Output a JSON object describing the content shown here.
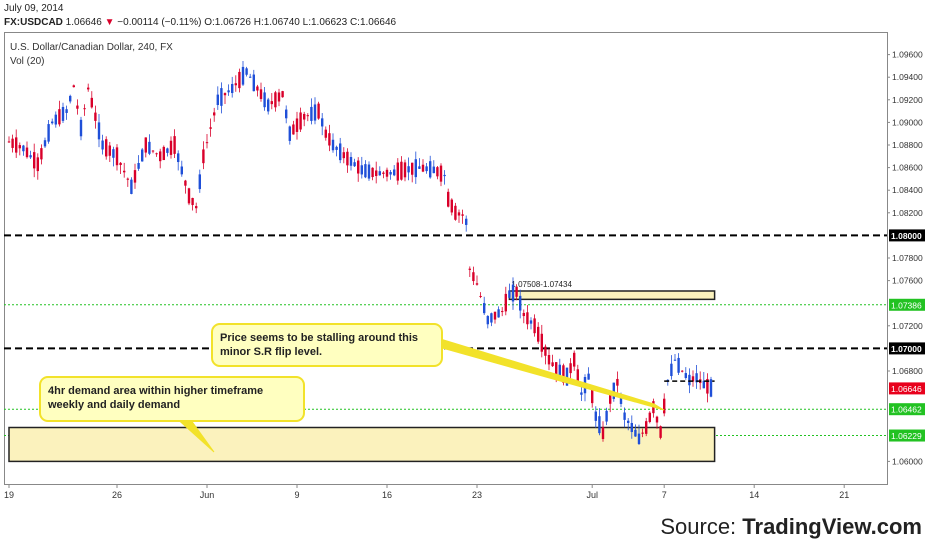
{
  "header": {
    "date": "July 09, 2014",
    "symbol": "FX:USDCAD",
    "last": "1.06646",
    "change_arrow": "▼",
    "change": "−0.00114 (−0.11%)",
    "open_label": "O:",
    "open": "1.06726",
    "high_label": "H:",
    "high": "1.06740",
    "low_label": "L:",
    "low": "1.06623",
    "close_label": "C:",
    "close": "1.06646"
  },
  "chart_data": {
    "type": "candlestick",
    "title": "U.S. Dollar/Canadian Dollar, 240, FX",
    "indicator": "Vol (20)",
    "ylim": [
      1.058,
      1.098
    ],
    "y_ticks": [
      "1.09600",
      "1.09400",
      "1.09200",
      "1.09000",
      "1.08800",
      "1.08600",
      "1.08400",
      "1.08200",
      "1.08000",
      "1.07800",
      "1.07600",
      "1.07386",
      "1.07200",
      "1.07000",
      "1.06800",
      "1.06646",
      "1.06462",
      "1.06229",
      "1.06000"
    ],
    "x_ticks": [
      "19",
      "26",
      "Jun",
      "9",
      "16",
      "23",
      "Jul",
      "7",
      "14",
      "21"
    ],
    "x_tick_index": [
      0,
      30,
      55,
      80,
      105,
      130,
      162,
      182,
      207,
      232
    ],
    "last_price_label": "1.06646",
    "colors": {
      "up": "#1f4fd8",
      "down": "#d9002a",
      "price_tag": "#e8001c",
      "green_level": "#22c222",
      "zone_fill": "#fbf2bd",
      "zone_stroke": "#222222",
      "callout_fill": "#ffffc0",
      "callout_stroke": "#f2e22a"
    },
    "levels": [
      {
        "price": 1.08,
        "style": "black-dashed",
        "label": "1.08000"
      },
      {
        "price": 1.07,
        "style": "black-dashed",
        "label": "1.07000"
      },
      {
        "price": 1.07386,
        "style": "green-dotted",
        "label": "1.07386"
      },
      {
        "price": 1.06462,
        "style": "green-dotted",
        "label": "1.06462"
      },
      {
        "price": 1.06229,
        "style": "green-dotted",
        "label": "1.06229"
      }
    ],
    "zones": [
      {
        "name": "supply-zone",
        "label": "1.07508-1.07434",
        "top": 1.07508,
        "bottom": 1.07434,
        "start_index": 139,
        "end_index": 196
      },
      {
        "name": "demand-zone",
        "label": "",
        "top": 1.063,
        "bottom": 1.06,
        "start_index": 0,
        "end_index": 196
      }
    ],
    "callouts": [
      {
        "name": "callout-sr-flip",
        "text": [
          "Price seems to be stalling around this",
          "minor S.R flip level."
        ]
      },
      {
        "name": "callout-demand",
        "text": [
          "4hr demand area within higher timeframe",
          "weekly and daily demand"
        ]
      }
    ],
    "minor_sr_level": {
      "price": 1.0671,
      "start_index": 182,
      "end_index": 196
    },
    "keypoints": [
      [
        0,
        1.0883
      ],
      [
        4,
        1.0877
      ],
      [
        8,
        1.0863
      ],
      [
        12,
        1.09
      ],
      [
        16,
        1.091
      ],
      [
        18,
        1.0932
      ],
      [
        20,
        1.0895
      ],
      [
        22,
        1.093
      ],
      [
        26,
        1.088
      ],
      [
        30,
        1.087
      ],
      [
        34,
        1.0843
      ],
      [
        38,
        1.088
      ],
      [
        42,
        1.087
      ],
      [
        46,
        1.088
      ],
      [
        50,
        1.0835
      ],
      [
        52,
        1.0825
      ],
      [
        54,
        1.087
      ],
      [
        56,
        1.0895
      ],
      [
        58,
        1.092
      ],
      [
        62,
        1.093
      ],
      [
        66,
        1.0945
      ],
      [
        68,
        1.0935
      ],
      [
        72,
        1.0915
      ],
      [
        76,
        1.0925
      ],
      [
        78,
        1.089
      ],
      [
        82,
        1.0905
      ],
      [
        86,
        1.091
      ],
      [
        88,
        1.089
      ],
      [
        90,
        1.088
      ],
      [
        94,
        1.0868
      ],
      [
        98,
        1.0858
      ],
      [
        102,
        1.0855
      ],
      [
        106,
        1.0855
      ],
      [
        110,
        1.0858
      ],
      [
        114,
        1.086
      ],
      [
        118,
        1.0858
      ],
      [
        121,
        1.0853
      ],
      [
        122,
        1.0832
      ],
      [
        124,
        1.082
      ],
      [
        126,
        1.0818
      ],
      [
        127,
        1.0812
      ],
      [
        128,
        1.077
      ],
      [
        130,
        1.0757
      ],
      [
        133,
        1.0725
      ],
      [
        137,
        1.0733
      ],
      [
        139,
        1.0748
      ],
      [
        141,
        1.075
      ],
      [
        143,
        1.073
      ],
      [
        146,
        1.072
      ],
      [
        148,
        1.0705
      ],
      [
        150,
        1.069
      ],
      [
        152,
        1.0682
      ],
      [
        155,
        1.0675
      ],
      [
        157,
        1.069
      ],
      [
        159,
        1.066
      ],
      [
        161,
        1.0675
      ],
      [
        163,
        1.064
      ],
      [
        165,
        1.0625
      ],
      [
        167,
        1.0655
      ],
      [
        169,
        1.067
      ],
      [
        171,
        1.064
      ],
      [
        173,
        1.063
      ],
      [
        175,
        1.062
      ],
      [
        177,
        1.063
      ],
      [
        179,
        1.0648
      ],
      [
        181,
        1.0626
      ],
      [
        183,
        1.0672
      ],
      [
        185,
        1.069
      ],
      [
        187,
        1.068
      ],
      [
        189,
        1.0672
      ],
      [
        191,
        1.0674
      ],
      [
        193,
        1.0668
      ],
      [
        195,
        1.0665
      ]
    ],
    "n_candles": 196,
    "grid": false,
    "legend": "none"
  },
  "source": {
    "prefix": "Source: ",
    "brand": "TradingView.com"
  }
}
